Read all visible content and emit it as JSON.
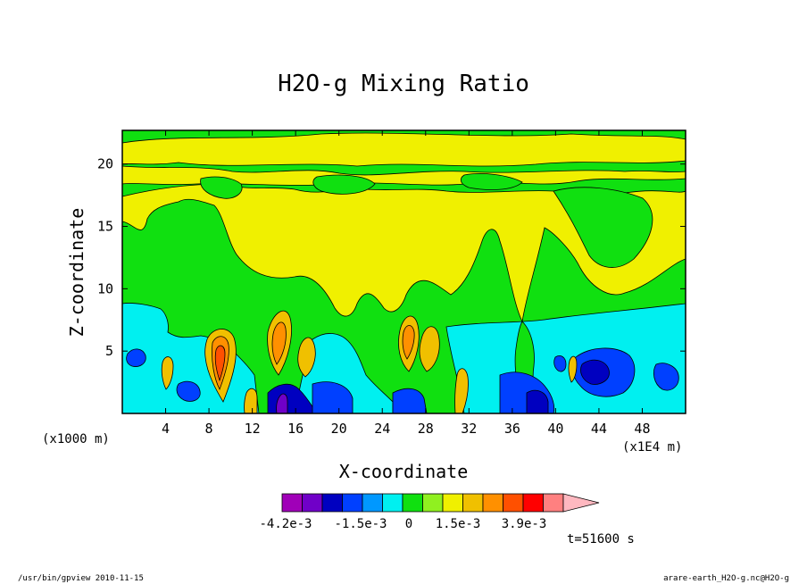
{
  "chart_data": {
    "type": "heatmap",
    "title": "H2O-g Mixing Ratio",
    "xlabel": "X-coordinate",
    "ylabel": "Z-coordinate",
    "x_unit_left": "(x1000 m)",
    "x_unit_right": "(x1E4 m)",
    "xlim": [
      0,
      52
    ],
    "ylim": [
      0,
      22.7
    ],
    "x_ticks": [
      "4",
      "8",
      "12",
      "16",
      "20",
      "24",
      "28",
      "32",
      "36",
      "40",
      "44",
      "48"
    ],
    "y_ticks": [
      "5",
      "10",
      "15",
      "20"
    ],
    "colorbar": {
      "colors": [
        "#a000b8",
        "#7000c8",
        "#0000c0",
        "#0040ff",
        "#0098ff",
        "#00f0f0",
        "#10e010",
        "#90f020",
        "#f0f000",
        "#f0c000",
        "#ff9000",
        "#ff5000",
        "#ff0000",
        "#ff8080",
        "#ffb8c0"
      ],
      "labels": [
        "-4.2e-3",
        "-1.5e-3",
        "0",
        "1.5e-3",
        "3.9e-3"
      ]
    },
    "levels": {
      "negative_strong": -0.0042,
      "negative_mid": -0.0015,
      "zero": 0,
      "positive_mid": 0.0015,
      "positive_strong": 0.0039
    }
  },
  "footer": {
    "time_label": "t=51600 s",
    "left_note": "/usr/bin/gpview  2010-11-15",
    "right_note": "arare-earth_H2O-g.nc@H2O-g"
  }
}
